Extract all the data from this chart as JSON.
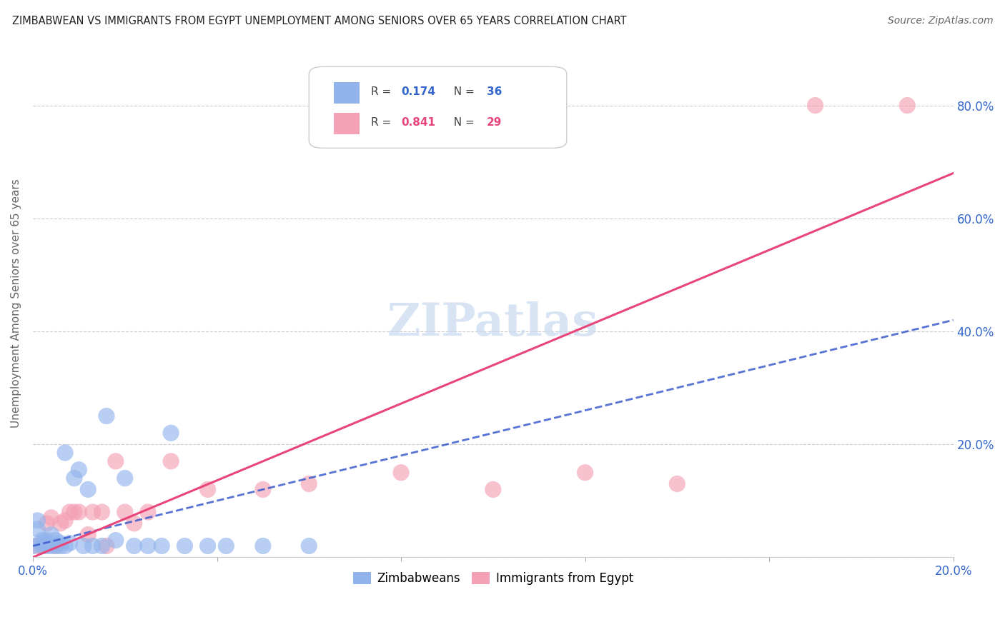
{
  "title": "ZIMBABWEAN VS IMMIGRANTS FROM EGYPT UNEMPLOYMENT AMONG SENIORS OVER 65 YEARS CORRELATION CHART",
  "source": "Source: ZipAtlas.com",
  "ylabel": "Unemployment Among Seniors over 65 years",
  "xlim": [
    0.0,
    0.2
  ],
  "ylim": [
    0.0,
    0.9
  ],
  "xticks": [
    0.0,
    0.04,
    0.08,
    0.12,
    0.16,
    0.2
  ],
  "yticks": [
    0.0,
    0.2,
    0.4,
    0.6,
    0.8
  ],
  "ytick_labels": [
    "",
    "20.0%",
    "40.0%",
    "60.0%",
    "80.0%"
  ],
  "xtick_labels": [
    "0.0%",
    "",
    "",
    "",
    "",
    "20.0%"
  ],
  "zimbabwe_R": 0.174,
  "zimbabwe_N": 36,
  "egypt_R": 0.841,
  "egypt_N": 29,
  "blue_color": "#92b4ec",
  "pink_color": "#f4a0b5",
  "line_blue": "#3a5bcc",
  "line_pink": "#e8457a",
  "watermark_color": "#c8d8f0",
  "zimbabwe_x": [
    0.0,
    0.001,
    0.001,
    0.002,
    0.002,
    0.002,
    0.003,
    0.003,
    0.003,
    0.004,
    0.004,
    0.005,
    0.005,
    0.006,
    0.006,
    0.007,
    0.007,
    0.008,
    0.009,
    0.01,
    0.011,
    0.012,
    0.013,
    0.015,
    0.016,
    0.018,
    0.02,
    0.022,
    0.025,
    0.028,
    0.03,
    0.033,
    0.038,
    0.042,
    0.05,
    0.06
  ],
  "zimbabwe_y": [
    0.02,
    0.05,
    0.065,
    0.02,
    0.025,
    0.03,
    0.02,
    0.025,
    0.03,
    0.02,
    0.04,
    0.02,
    0.03,
    0.02,
    0.025,
    0.02,
    0.185,
    0.025,
    0.14,
    0.155,
    0.02,
    0.12,
    0.02,
    0.02,
    0.25,
    0.03,
    0.14,
    0.02,
    0.02,
    0.02,
    0.22,
    0.02,
    0.02,
    0.02,
    0.02,
    0.02
  ],
  "egypt_x": [
    0.001,
    0.002,
    0.003,
    0.004,
    0.005,
    0.006,
    0.007,
    0.008,
    0.009,
    0.01,
    0.012,
    0.013,
    0.015,
    0.016,
    0.018,
    0.02,
    0.022,
    0.025,
    0.03,
    0.038,
    0.05,
    0.06,
    0.08,
    0.09,
    0.1,
    0.12,
    0.14,
    0.17,
    0.19
  ],
  "egypt_y": [
    0.02,
    0.02,
    0.06,
    0.07,
    0.02,
    0.06,
    0.065,
    0.08,
    0.08,
    0.08,
    0.04,
    0.08,
    0.08,
    0.02,
    0.17,
    0.08,
    0.06,
    0.08,
    0.17,
    0.12,
    0.12,
    0.13,
    0.15,
    0.8,
    0.12,
    0.15,
    0.13,
    0.8,
    0.8
  ],
  "egypt_trend_x": [
    0.0,
    0.2
  ],
  "egypt_trend_y": [
    0.0,
    0.68
  ],
  "zim_trend_x": [
    0.0,
    0.2
  ],
  "zim_trend_y": [
    0.02,
    0.42
  ]
}
